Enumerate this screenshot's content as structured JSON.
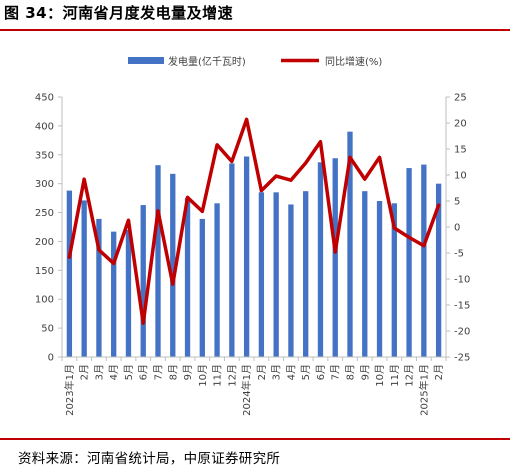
{
  "figure": {
    "title": "图 34：河南省月度发电量及增速",
    "source": "资料来源：河南省统计局，中原证券研究所"
  },
  "colors": {
    "bar": "#4472C4",
    "line": "#C00000",
    "rule": "#C00000",
    "axis": "#BFBFBF"
  },
  "chart_data": {
    "type": "bar",
    "title": "",
    "categories": [
      "2023年1月",
      "2月",
      "3月",
      "4月",
      "5月",
      "6月",
      "7月",
      "8月",
      "9月",
      "10月",
      "11月",
      "12月",
      "2024年1月",
      "2月",
      "3月",
      "4月",
      "5月",
      "6月",
      "7月",
      "8月",
      "9月",
      "10月",
      "11月",
      "12月",
      "2025年1月",
      "2月"
    ],
    "series": [
      {
        "name": "发电量(亿千瓦时)",
        "type": "bar",
        "axis": "left",
        "values": [
          288,
          271,
          239,
          217,
          220,
          263,
          332,
          317,
          275,
          239,
          266,
          335,
          347,
          285,
          285,
          264,
          287,
          337,
          344,
          390,
          287,
          270,
          266,
          327,
          333,
          300
        ]
      },
      {
        "name": "同比增速(%)",
        "type": "line",
        "axis": "right",
        "values": [
          -5.8,
          9.2,
          -4.4,
          -7.0,
          1.3,
          -18.5,
          3.1,
          -11.0,
          5.7,
          3.0,
          15.8,
          12.6,
          20.7,
          7.0,
          9.8,
          9.0,
          12.3,
          16.4,
          -4.8,
          13.4,
          9.2,
          13.4,
          -0.2,
          -2.0,
          -3.6,
          4.2
        ]
      }
    ],
    "y_left": {
      "ylim": [
        0,
        450
      ],
      "ticks": [
        0,
        50,
        100,
        150,
        200,
        250,
        300,
        350,
        400,
        450
      ]
    },
    "y_right": {
      "ylim": [
        -25,
        25
      ],
      "ticks": [
        -25,
        -20,
        -15,
        -10,
        -5,
        0,
        5,
        10,
        15,
        20,
        25
      ]
    },
    "xlabel": "",
    "ylabel": "",
    "grid": false,
    "legend": "top-center"
  }
}
